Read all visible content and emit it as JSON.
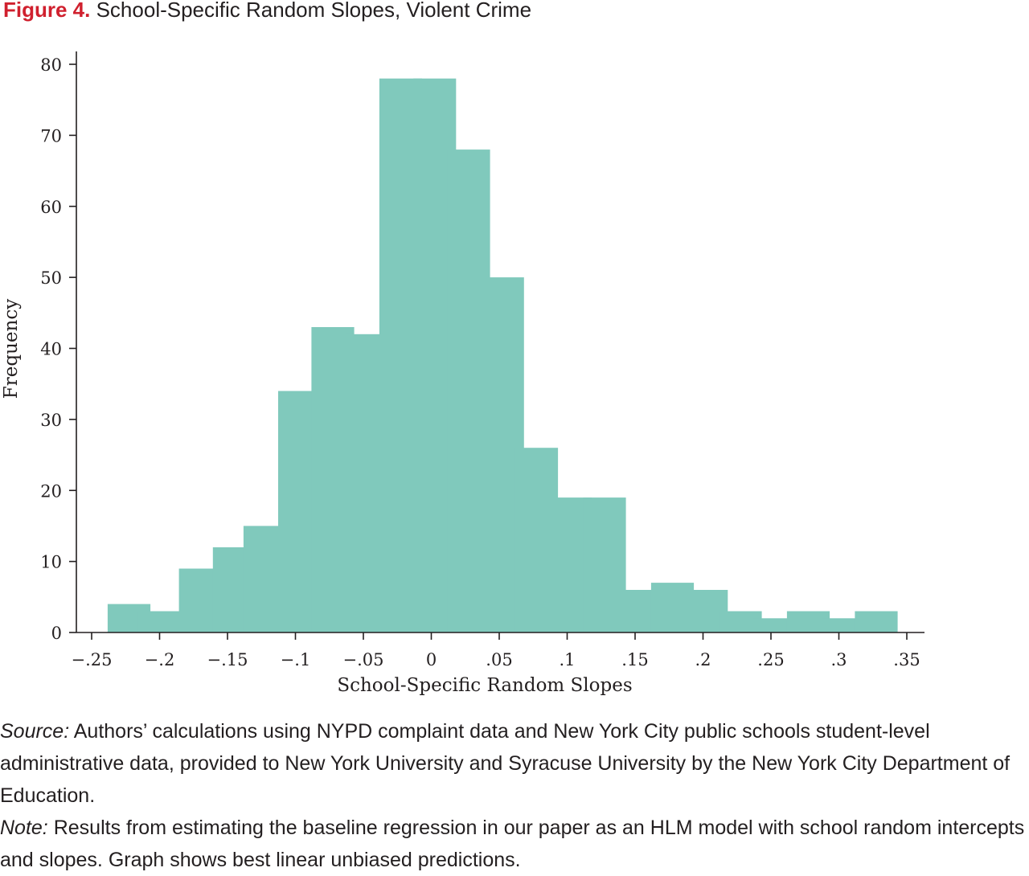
{
  "figure": {
    "number": "Figure 4.",
    "title": "School-Specific Random Slopes, Violent Crime"
  },
  "chart_data": {
    "type": "bar",
    "xlabel": "School-Specific Random Slopes",
    "ylabel": "Frequency",
    "bar_color": "#80c9bc",
    "xlim": [
      -0.25,
      0.35
    ],
    "ylim": [
      0,
      80
    ],
    "xticks": [
      {
        "value": -0.25,
        "label": "−.25"
      },
      {
        "value": -0.2,
        "label": "−.2"
      },
      {
        "value": -0.15,
        "label": "−.15"
      },
      {
        "value": -0.1,
        "label": "−.1"
      },
      {
        "value": -0.05,
        "label": "−.05"
      },
      {
        "value": 0,
        "label": "0"
      },
      {
        "value": 0.05,
        "label": ".05"
      },
      {
        "value": 0.1,
        "label": ".1"
      },
      {
        "value": 0.15,
        "label": ".15"
      },
      {
        "value": 0.2,
        "label": ".2"
      },
      {
        "value": 0.25,
        "label": ".25"
      },
      {
        "value": 0.3,
        "label": ".3"
      },
      {
        "value": 0.35,
        "label": ".35"
      }
    ],
    "yticks": [
      {
        "value": 0,
        "label": "0"
      },
      {
        "value": 10,
        "label": "10"
      },
      {
        "value": 20,
        "label": "20"
      },
      {
        "value": 30,
        "label": "30"
      },
      {
        "value": 40,
        "label": "40"
      },
      {
        "value": 50,
        "label": "50"
      },
      {
        "value": 60,
        "label": "60"
      },
      {
        "value": 70,
        "label": "70"
      },
      {
        "value": 80,
        "label": "80"
      }
    ],
    "bin_width": 0.0125,
    "bins": [
      {
        "x": -0.2225,
        "value": 4
      },
      {
        "x": -0.2,
        "value": 3
      },
      {
        "x": -0.17,
        "value": 9
      },
      {
        "x": -0.145,
        "value": 12
      },
      {
        "x": -0.1225,
        "value": 15
      },
      {
        "x": -0.097,
        "value": 34
      },
      {
        "x": -0.0725,
        "value": 43
      },
      {
        "x": -0.0475,
        "value": 42
      },
      {
        "x": -0.0225,
        "value": 78
      },
      {
        "x": 0.0025,
        "value": 78
      },
      {
        "x": 0.0275,
        "value": 68
      },
      {
        "x": 0.0525,
        "value": 50
      },
      {
        "x": 0.0775,
        "value": 26
      },
      {
        "x": 0.1025,
        "value": 19
      },
      {
        "x": 0.1275,
        "value": 19
      },
      {
        "x": 0.1525,
        "value": 6
      },
      {
        "x": 0.1775,
        "value": 7
      },
      {
        "x": 0.2025,
        "value": 6
      },
      {
        "x": 0.2275,
        "value": 3
      },
      {
        "x": 0.2525,
        "value": 2
      },
      {
        "x": 0.2775,
        "value": 3
      },
      {
        "x": 0.3025,
        "value": 2
      },
      {
        "x": 0.3275,
        "value": 3
      }
    ]
  },
  "notes": {
    "source_label": "Source:",
    "source_text": " Authors’ calculations using NYPD complaint data and New York City public schools student-level administrative data, provided to New York University and Syracuse University by the New York City Department of Education.",
    "note_label": "Note:",
    "note_text": " Results from estimating the baseline regression in our paper as an HLM model with school random intercepts and slopes. Graph shows best linear unbiased predictions."
  }
}
